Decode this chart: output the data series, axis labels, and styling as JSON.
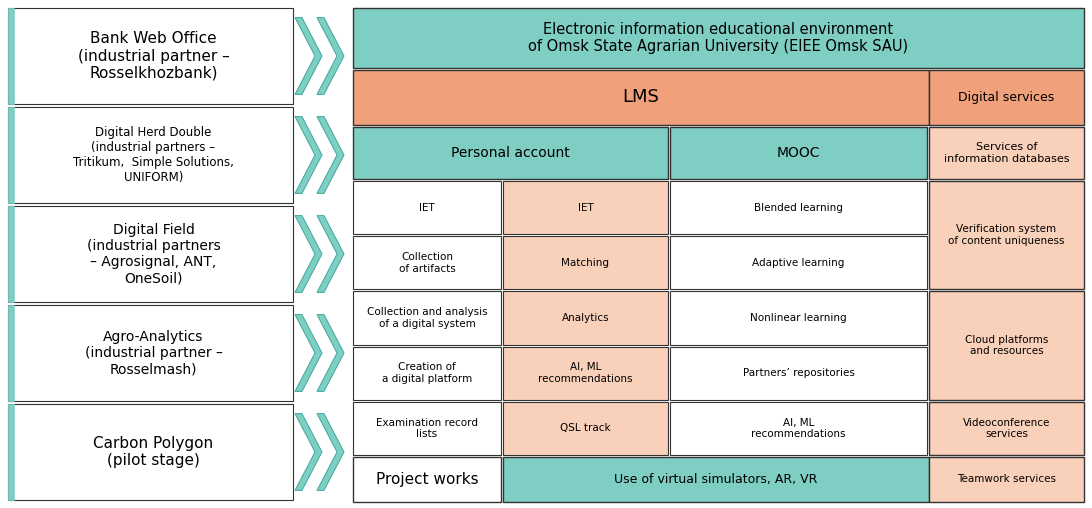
{
  "bg_color": "#ffffff",
  "teal": "#7ecec4",
  "salmon": "#f0a07a",
  "light_salmon": "#f9d0ba",
  "white": "#ffffff",
  "border_color": "#333333",
  "title": "Electronic information educational environment\nof Omsk State Agrarian University (EIEE Omsk SAU)",
  "left_items": [
    "Bank Web Office\n(industrial partner –\nRosselkhozbank)",
    "Digital Herd Double\n(industrial partners –\nTritikum,  Simple Solutions,\nUNIFORM)",
    "Digital Field\n(industrial partners\n– Agrosignal, ANT,\nOneSoil)",
    "Agro-Analytics\n(industrial partner –\nRosselmash)",
    "Carbon Polygon\n(pilot stage)"
  ],
  "left_fontsizes": [
    11,
    8.5,
    10,
    10,
    11
  ],
  "grid_rows": [
    [
      "IET",
      "IET",
      "Blended learning"
    ],
    [
      "Collection\nof artifacts",
      "Matching",
      "Adaptive learning"
    ],
    [
      "Collection and analysis\nof a digital system",
      "Analytics",
      "Nonlinear learning"
    ],
    [
      "Creation of\na digital platform",
      "AI, ML\nrecommendations",
      "Partners’ repositories"
    ],
    [
      "Examination record\nlists",
      "QSL track",
      "AI, ML\nrecommendations"
    ]
  ],
  "col1_fc": "#ffffff",
  "col2_fc": "#f9d0ba",
  "col3_fc": "#ffffff",
  "right_panel_items": [
    {
      "text": "Digital services",
      "fc": "#f0a07a",
      "rows": 1
    },
    {
      "text": "Services of\ninformation databases",
      "fc": "#f9d0ba",
      "rows": 1
    },
    {
      "text": "Verification system\nof content uniqueness",
      "fc": "#f9d0ba",
      "rows": 2
    },
    {
      "text": "Cloud platforms\nand resources",
      "fc": "#f9d0ba",
      "rows": 2
    },
    {
      "text": "Videoconference\nservices",
      "fc": "#f9d0ba",
      "rows": 1
    },
    {
      "text": "Teamwork services",
      "fc": "#f9d0ba",
      "rows": 1
    }
  ],
  "lms_text": "LMS",
  "personal_account_text": "Personal account",
  "mooc_text": "MOOC",
  "project_works_text": "Project works",
  "vr_text": "Use of virtual simulators, AR, VR"
}
